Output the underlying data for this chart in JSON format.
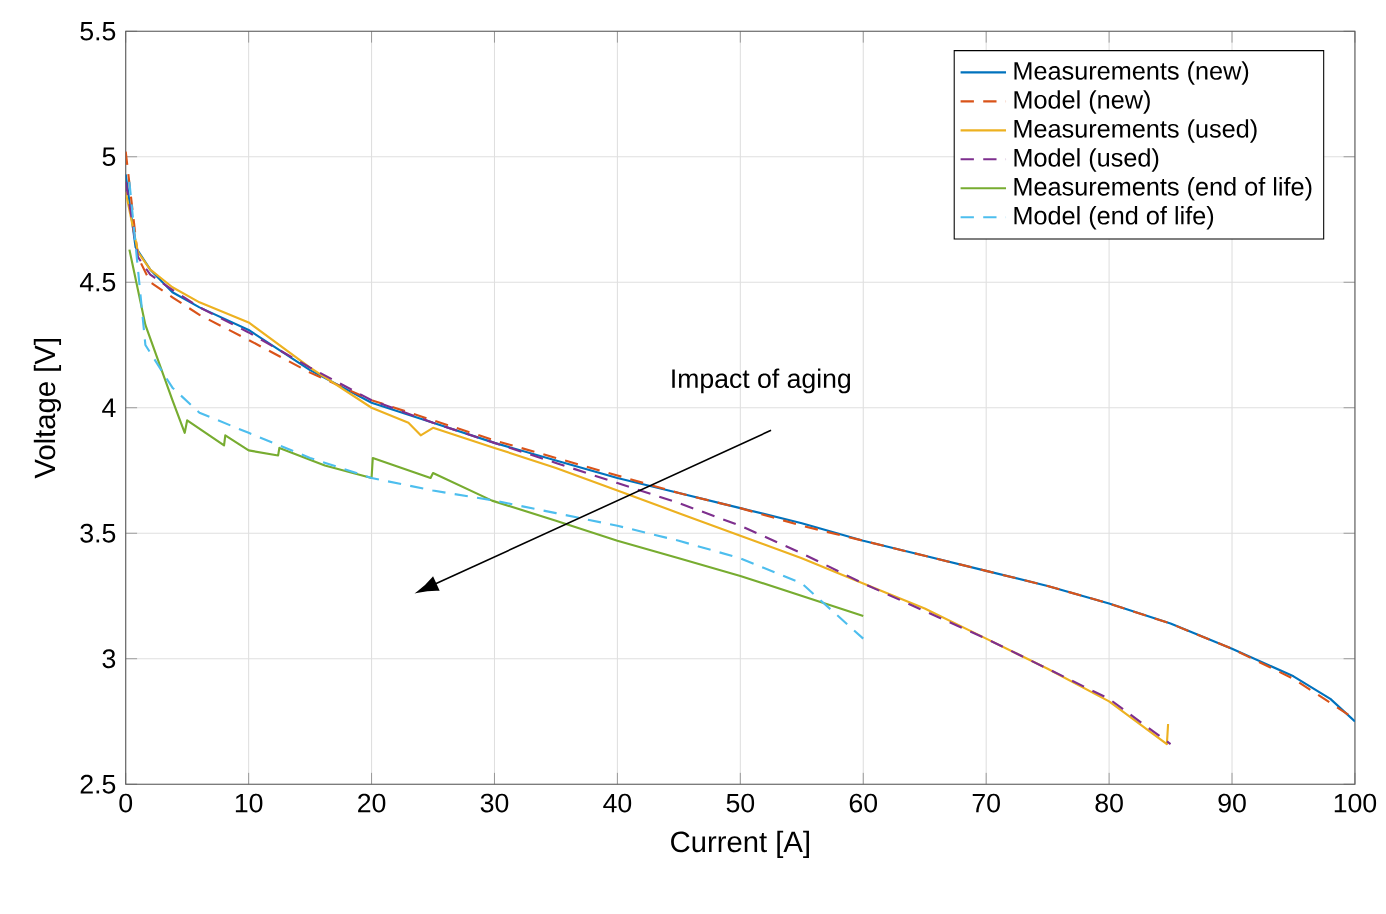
{
  "chart_data": {
    "type": "line",
    "xlabel": "Current [A]",
    "ylabel": "Voltage [V]",
    "xlim": [
      0,
      100
    ],
    "ylim": [
      2.5,
      5.5
    ],
    "xticks": [
      0,
      10,
      20,
      30,
      40,
      50,
      60,
      70,
      80,
      90,
      100
    ],
    "yticks": [
      2.5,
      3,
      {
        "value": 3.5,
        "label": "3.5"
      },
      4,
      {
        "value": 4.5,
        "label": "4.5"
      },
      5,
      {
        "value": 5.5,
        "label": "5.5"
      }
    ],
    "grid": true,
    "legend": "top right",
    "marker": "none",
    "annotations": [
      "Impact of aging"
    ],
    "series": [
      {
        "name": "Measurements (new)",
        "color": "#0072bd",
        "line_style": "solid",
        "x": [
          0,
          0.8,
          2,
          3.8,
          6,
          10,
          15,
          20,
          25,
          30,
          35,
          40,
          45,
          50,
          55,
          60,
          65,
          70,
          75,
          80,
          85,
          90,
          95,
          98,
          100
        ],
        "values": [
          4.93,
          4.64,
          4.55,
          4.46,
          4.4,
          4.31,
          4.15,
          4.02,
          3.94,
          3.86,
          3.79,
          3.72,
          3.66,
          3.6,
          3.54,
          3.47,
          3.41,
          3.35,
          3.29,
          3.22,
          3.14,
          3.04,
          2.93,
          2.84,
          2.75
        ]
      },
      {
        "name": "Model (new)",
        "color": "#d95319",
        "line_style": "dashed",
        "x": [
          0,
          1,
          2,
          3.8,
          6,
          10,
          15,
          20,
          25,
          30,
          35,
          40,
          45,
          50,
          55,
          60,
          65,
          70,
          75,
          80,
          85,
          90,
          95,
          100
        ],
        "values": [
          5.02,
          4.6,
          4.5,
          4.44,
          4.37,
          4.27,
          4.14,
          4.03,
          3.95,
          3.87,
          3.8,
          3.73,
          3.66,
          3.6,
          3.53,
          3.47,
          3.41,
          3.35,
          3.29,
          3.22,
          3.14,
          3.04,
          2.92,
          2.76
        ]
      },
      {
        "name": "Measurements (used)",
        "color": "#edb120",
        "line_style": "solid",
        "x": [
          0,
          1,
          2,
          3.8,
          6,
          10,
          15,
          20,
          23,
          24,
          25,
          30,
          35,
          40,
          45,
          50,
          55,
          60,
          65,
          70,
          75,
          80,
          84.7,
          84.8
        ],
        "values": [
          4.86,
          4.62,
          4.55,
          4.48,
          4.42,
          4.34,
          4.16,
          4.0,
          3.94,
          3.89,
          3.92,
          3.84,
          3.76,
          3.67,
          3.58,
          3.49,
          3.4,
          3.3,
          3.2,
          3.08,
          2.96,
          2.83,
          2.66,
          2.74
        ]
      },
      {
        "name": "Model (used)",
        "color": "#7e2f8e",
        "line_style": "dashed",
        "x": [
          0,
          1,
          2,
          3.8,
          6,
          10,
          15,
          20,
          25,
          30,
          35,
          40,
          45,
          50,
          55,
          60,
          65,
          70,
          75,
          80,
          85
        ],
        "values": [
          4.9,
          4.6,
          4.53,
          4.47,
          4.4,
          4.3,
          4.16,
          4.03,
          3.94,
          3.86,
          3.78,
          3.7,
          3.62,
          3.53,
          3.42,
          3.3,
          3.19,
          3.08,
          2.96,
          2.84,
          2.66
        ]
      },
      {
        "name": "Measurements (end of life)",
        "color": "#77ac30",
        "line_style": "solid",
        "x": [
          0.3,
          1.6,
          3.8,
          4.8,
          5,
          8,
          8.1,
          10,
          12.4,
          12.5,
          16.2,
          20,
          20.1,
          24.8,
          25,
          29.8,
          35,
          40,
          45,
          50,
          55,
          60
        ],
        "values": [
          4.63,
          4.33,
          4.03,
          3.9,
          3.95,
          3.85,
          3.89,
          3.83,
          3.81,
          3.84,
          3.77,
          3.72,
          3.8,
          3.72,
          3.74,
          3.63,
          3.55,
          3.47,
          3.4,
          3.33,
          3.25,
          3.17
        ]
      },
      {
        "name": "Model (end of life)",
        "color": "#4dbeee",
        "line_style": "dashed",
        "x": [
          0.3,
          1.6,
          3.8,
          6,
          10,
          15,
          20,
          25,
          30,
          35,
          40,
          45,
          50,
          55,
          60
        ],
        "values": [
          4.9,
          4.25,
          4.08,
          3.98,
          3.9,
          3.8,
          3.72,
          3.67,
          3.63,
          3.58,
          3.53,
          3.47,
          3.4,
          3.3,
          3.08
        ]
      }
    ]
  }
}
